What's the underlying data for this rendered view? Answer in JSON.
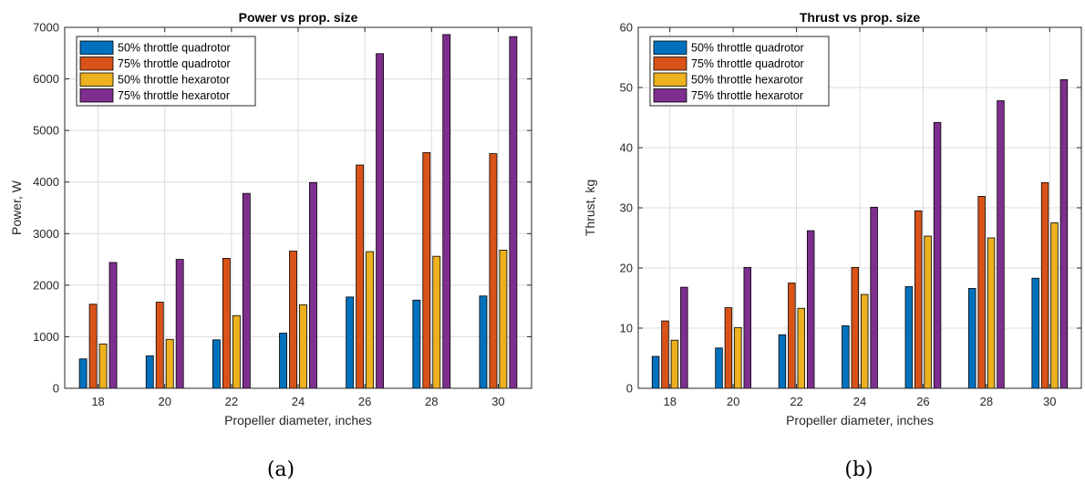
{
  "chart_data": [
    {
      "type": "bar",
      "title": "Power vs prop. size",
      "xlabel": "Propeller diameter, inches",
      "ylabel": "Power, W",
      "caption": "(a)",
      "categories": [
        "18",
        "20",
        "22",
        "24",
        "26",
        "28",
        "30"
      ],
      "ylim": [
        0,
        7000
      ],
      "yticks": [
        0,
        1000,
        2000,
        3000,
        4000,
        5000,
        6000,
        7000
      ],
      "grid": true,
      "legend_position": "top-left",
      "series": [
        {
          "name": "50% throttle quadrotor",
          "color": "#0072BD",
          "values": [
            570,
            630,
            940,
            1070,
            1770,
            1710,
            1790
          ]
        },
        {
          "name": "75% throttle quadrotor",
          "color": "#D95319",
          "values": [
            1630,
            1670,
            2520,
            2660,
            4330,
            4570,
            4550
          ]
        },
        {
          "name": "50% throttle hexarotor",
          "color": "#EDB120",
          "values": [
            860,
            950,
            1410,
            1620,
            2650,
            2560,
            2680
          ]
        },
        {
          "name": "75% throttle hexarotor",
          "color": "#7E2F8E",
          "values": [
            2440,
            2500,
            3780,
            3990,
            6490,
            6860,
            6820
          ]
        }
      ]
    },
    {
      "type": "bar",
      "title": "Thrust vs prop. size",
      "xlabel": "Propeller diameter, inches",
      "ylabel": "Thrust, kg",
      "caption": "(b)",
      "categories": [
        "18",
        "20",
        "22",
        "24",
        "26",
        "28",
        "30"
      ],
      "ylim": [
        0,
        60
      ],
      "yticks": [
        0,
        10,
        20,
        30,
        40,
        50,
        60
      ],
      "grid": true,
      "legend_position": "top-left",
      "series": [
        {
          "name": "50% throttle quadrotor",
          "color": "#0072BD",
          "values": [
            5.3,
            6.7,
            8.9,
            10.4,
            16.9,
            16.6,
            18.3
          ]
        },
        {
          "name": "75% throttle quadrotor",
          "color": "#D95319",
          "values": [
            11.2,
            13.4,
            17.5,
            20.1,
            29.5,
            31.9,
            34.2
          ]
        },
        {
          "name": "50% throttle hexarotor",
          "color": "#EDB120",
          "values": [
            8.0,
            10.1,
            13.3,
            15.6,
            25.3,
            25.0,
            27.5
          ]
        },
        {
          "name": "75% throttle hexarotor",
          "color": "#7E2F8E",
          "values": [
            16.8,
            20.1,
            26.2,
            30.1,
            44.2,
            47.8,
            51.3
          ]
        }
      ]
    }
  ]
}
